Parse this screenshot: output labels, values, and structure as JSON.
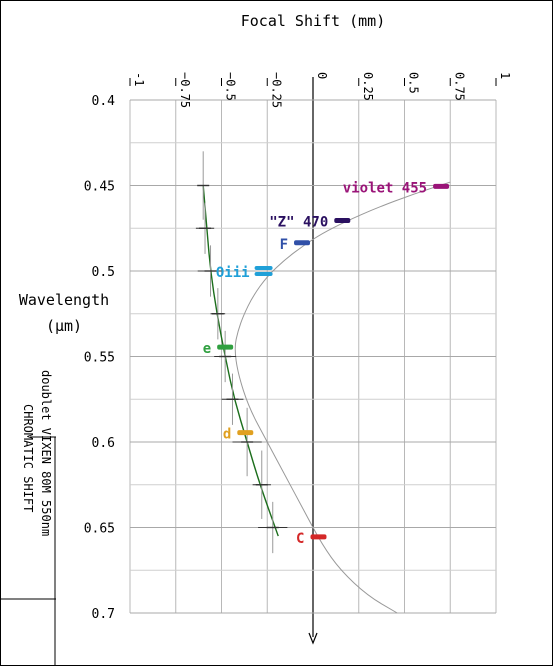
{
  "chart_data": {
    "type": "line",
    "title": "Focal Shift (mm)",
    "xlabel": "Focal Shift (mm)",
    "ylabel_line1": "Wavelength",
    "ylabel_line2": "(μm)",
    "side_caption": [
      "doublet VIXEN 80M 550nm",
      "CHROMATIC SHIFT"
    ],
    "x_range": [
      -1,
      1
    ],
    "y_range": [
      0.4,
      0.7
    ],
    "y_inverted": true,
    "grid": true,
    "x_ticks": [
      -1,
      -0.75,
      -0.5,
      -0.25,
      0,
      0.25,
      0.5,
      0.75,
      1
    ],
    "x_tick_labels": [
      "-1",
      "−0.75",
      "−0.5",
      "−0.25",
      "0",
      "0.25",
      "0.5",
      "0.75",
      "1"
    ],
    "y_ticks": [
      0.4,
      0.45,
      0.5,
      0.55,
      0.6,
      0.65,
      0.7
    ],
    "y_tick_labels": [
      "0.4",
      "0.45",
      "0.5",
      "0.55",
      "0.6",
      "0.65",
      "0.7"
    ],
    "series": [
      {
        "role": "design-curve",
        "color": "#999999",
        "points": [
          [
            0.75,
            0.448
          ],
          [
            0.55,
            0.455
          ],
          [
            0.35,
            0.463
          ],
          [
            0.18,
            0.471
          ],
          [
            0.05,
            0.478
          ],
          [
            -0.05,
            0.485
          ],
          [
            -0.15,
            0.493
          ],
          [
            -0.25,
            0.503
          ],
          [
            -0.33,
            0.515
          ],
          [
            -0.38,
            0.526
          ],
          [
            -0.41,
            0.535
          ],
          [
            -0.43,
            0.545
          ],
          [
            -0.41,
            0.56
          ],
          [
            -0.35,
            0.58
          ],
          [
            -0.25,
            0.6
          ],
          [
            -0.15,
            0.62
          ],
          [
            -0.05,
            0.64
          ],
          [
            0.05,
            0.66
          ],
          [
            0.15,
            0.675
          ],
          [
            0.3,
            0.69
          ],
          [
            0.46,
            0.7
          ]
        ]
      },
      {
        "role": "fit-curve",
        "color": "#1c6e1c",
        "points": [
          [
            -0.6,
            0.45
          ],
          [
            -0.58,
            0.475
          ],
          [
            -0.56,
            0.5
          ],
          [
            -0.525,
            0.525
          ],
          [
            -0.48,
            0.55
          ],
          [
            -0.43,
            0.575
          ],
          [
            -0.36,
            0.6
          ],
          [
            -0.29,
            0.625
          ],
          [
            -0.19,
            0.655
          ]
        ]
      },
      {
        "role": "measured-points",
        "color": "#1c6e1c",
        "error_color": "#333333",
        "points": [
          {
            "x": -0.6,
            "y": 0.45,
            "xerr": 0.03,
            "yerr": 0.02
          },
          {
            "x": -0.59,
            "y": 0.475,
            "xerr": 0.05,
            "yerr": 0.015
          },
          {
            "x": -0.56,
            "y": 0.5,
            "xerr": 0.07,
            "yerr": 0.015
          },
          {
            "x": -0.52,
            "y": 0.525,
            "xerr": 0.04,
            "yerr": 0.015
          },
          {
            "x": -0.48,
            "y": 0.55,
            "xerr": 0.06,
            "yerr": 0.015
          },
          {
            "x": -0.44,
            "y": 0.575,
            "xerr": 0.06,
            "yerr": 0.015
          },
          {
            "x": -0.36,
            "y": 0.6,
            "xerr": 0.08,
            "yerr": 0.02
          },
          {
            "x": -0.28,
            "y": 0.625,
            "xerr": 0.05,
            "yerr": 0.02
          },
          {
            "x": -0.22,
            "y": 0.65,
            "xerr": 0.08,
            "yerr": 0.015
          }
        ]
      }
    ],
    "annotations": [
      {
        "text": "violet 455",
        "x": 0.7,
        "y": 0.4505,
        "color": "#9a1478"
      },
      {
        "text": "\"Z\" 470",
        "x": 0.16,
        "y": 0.4705,
        "color": "#2a1060"
      },
      {
        "text": "F",
        "x": -0.06,
        "y": 0.4835,
        "color": "#3050a8"
      },
      {
        "text": "Oiii",
        "x": -0.27,
        "y": 0.5,
        "color": "#20a0d8"
      },
      {
        "text": "e",
        "x": -0.48,
        "y": 0.5445,
        "color": "#30a040"
      },
      {
        "text": "d",
        "x": -0.37,
        "y": 0.5945,
        "color": "#e0a020"
      },
      {
        "text": "C",
        "x": 0.03,
        "y": 0.6555,
        "color": "#d42828"
      }
    ]
  }
}
